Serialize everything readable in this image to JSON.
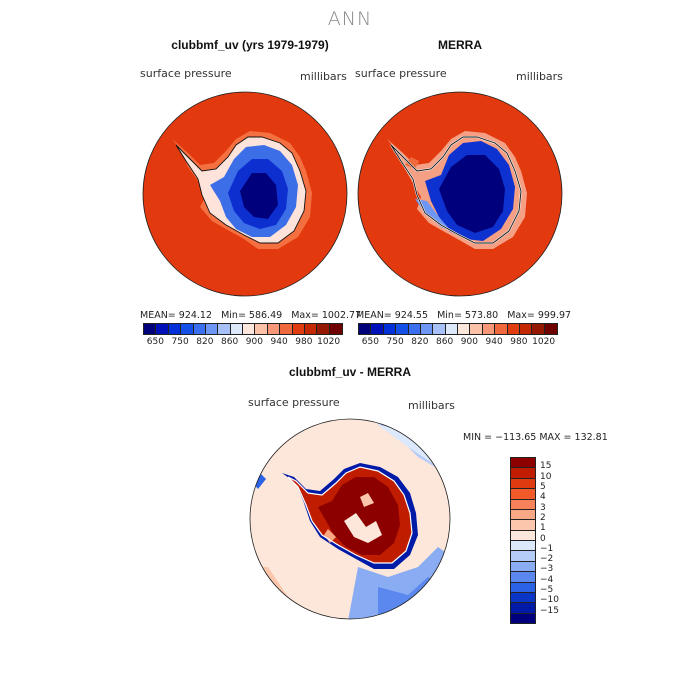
{
  "title": "ANN",
  "panels": {
    "left": {
      "title": "clubbmf_uv (yrs 1979-1979)",
      "variable": "surface pressure",
      "units": "millibars",
      "stats": "MEAN= 924.12   Min= 586.49   Max= 1002.77"
    },
    "right": {
      "title": "MERRA",
      "variable": "surface pressure",
      "units": "millibars",
      "stats": "MEAN= 924.55   Min= 573.80   Max= 999.97"
    },
    "diff": {
      "title": "clubbmf_uv - MERRA",
      "variable": "surface pressure",
      "units": "millibars",
      "stats": "MIN = −113.65 MAX = 132.81"
    }
  },
  "colorbar_top": {
    "labels": [
      "650",
      "750",
      "820",
      "860",
      "900",
      "940",
      "980",
      "1020"
    ],
    "colors": [
      "#00007a",
      "#0010b8",
      "#0030d8",
      "#1450e8",
      "#3a70f0",
      "#6e96f4",
      "#a8c0f8",
      "#dde8fb",
      "#fde6dc",
      "#fbc2a8",
      "#f89878",
      "#f0683e",
      "#e03c10",
      "#c42800",
      "#951800",
      "#6e0000"
    ]
  },
  "colorbar_diff": {
    "labels": [
      "15",
      "10",
      "5",
      "4",
      "3",
      "2",
      "1",
      "0",
      "−1",
      "−2",
      "−3",
      "−4",
      "−5",
      "−10",
      "−15"
    ],
    "colors": [
      "#8c0000",
      "#c01c00",
      "#e03a10",
      "#f25a2a",
      "#f7825a",
      "#f9a886",
      "#fbc6ac",
      "#fde6da",
      "#dce8fb",
      "#b6ccf8",
      "#8aacf2",
      "#5a88ee",
      "#2c62e6",
      "#0a36c8",
      "#001aa8",
      "#00007e"
    ]
  }
}
